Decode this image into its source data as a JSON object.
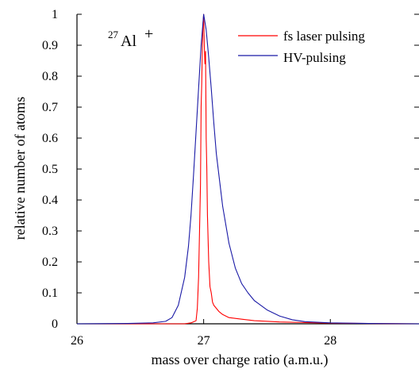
{
  "chart_data": {
    "type": "line",
    "title": "",
    "xlabel": "mass over charge ratio (a.m.u.)",
    "ylabel": "relative number of atoms",
    "xlim": [
      26,
      28.7
    ],
    "ylim": [
      0,
      1
    ],
    "x_ticks": [
      26,
      27,
      28
    ],
    "x_tick_labels": [
      "26",
      "27",
      "28"
    ],
    "y_ticks": [
      0,
      0.1,
      0.2,
      0.3,
      0.4,
      0.5,
      0.6,
      0.7,
      0.8,
      0.9,
      1
    ],
    "y_tick_labels": [
      "0",
      "0.1",
      "0.2",
      "0.3",
      "0.4",
      "0.5",
      "0.6",
      "0.7",
      "0.8",
      "0.9",
      "1"
    ],
    "grid": false,
    "legend": "top-right",
    "annotation": {
      "superscript": "27",
      "base": "Al",
      "charge": "+"
    },
    "series": [
      {
        "name": "fs laser pulsing",
        "color": "#ff0000",
        "points": [
          [
            26.0,
            0.0
          ],
          [
            26.5,
            0.0
          ],
          [
            26.85,
            0.0
          ],
          [
            26.9,
            0.003
          ],
          [
            26.94,
            0.01
          ],
          [
            26.95,
            0.05
          ],
          [
            26.96,
            0.15
          ],
          [
            26.97,
            0.35
          ],
          [
            26.975,
            0.45
          ],
          [
            26.98,
            0.7
          ],
          [
            26.985,
            0.78
          ],
          [
            26.99,
            0.9
          ],
          [
            26.995,
            0.97
          ],
          [
            27.0,
            1.0
          ],
          [
            27.005,
            0.9
          ],
          [
            27.01,
            0.84
          ],
          [
            27.015,
            0.88
          ],
          [
            27.02,
            0.6
          ],
          [
            27.025,
            0.5
          ],
          [
            27.03,
            0.35
          ],
          [
            27.04,
            0.2
          ],
          [
            27.05,
            0.12
          ],
          [
            27.06,
            0.1
          ],
          [
            27.07,
            0.07
          ],
          [
            27.08,
            0.06
          ],
          [
            27.1,
            0.05
          ],
          [
            27.12,
            0.04
          ],
          [
            27.15,
            0.03
          ],
          [
            27.2,
            0.02
          ],
          [
            27.3,
            0.015
          ],
          [
            27.4,
            0.01
          ],
          [
            27.6,
            0.006
          ],
          [
            27.8,
            0.004
          ],
          [
            28.0,
            0.002
          ],
          [
            28.3,
            0.001
          ],
          [
            28.7,
            0.0
          ]
        ]
      },
      {
        "name": "HV-pulsing",
        "color": "#1a1aa6",
        "points": [
          [
            26.0,
            0.0
          ],
          [
            26.4,
            0.001
          ],
          [
            26.6,
            0.003
          ],
          [
            26.7,
            0.008
          ],
          [
            26.75,
            0.02
          ],
          [
            26.8,
            0.06
          ],
          [
            26.85,
            0.15
          ],
          [
            26.88,
            0.25
          ],
          [
            26.9,
            0.35
          ],
          [
            26.92,
            0.48
          ],
          [
            26.94,
            0.62
          ],
          [
            26.96,
            0.76
          ],
          [
            26.98,
            0.9
          ],
          [
            27.0,
            1.0
          ],
          [
            27.02,
            0.95
          ],
          [
            27.04,
            0.86
          ],
          [
            27.06,
            0.76
          ],
          [
            27.08,
            0.65
          ],
          [
            27.1,
            0.55
          ],
          [
            27.15,
            0.38
          ],
          [
            27.2,
            0.26
          ],
          [
            27.25,
            0.18
          ],
          [
            27.3,
            0.13
          ],
          [
            27.35,
            0.1
          ],
          [
            27.4,
            0.075
          ],
          [
            27.5,
            0.045
          ],
          [
            27.6,
            0.025
          ],
          [
            27.7,
            0.013
          ],
          [
            27.8,
            0.007
          ],
          [
            28.0,
            0.003
          ],
          [
            28.3,
            0.001
          ],
          [
            28.7,
            0.0
          ]
        ]
      }
    ]
  }
}
